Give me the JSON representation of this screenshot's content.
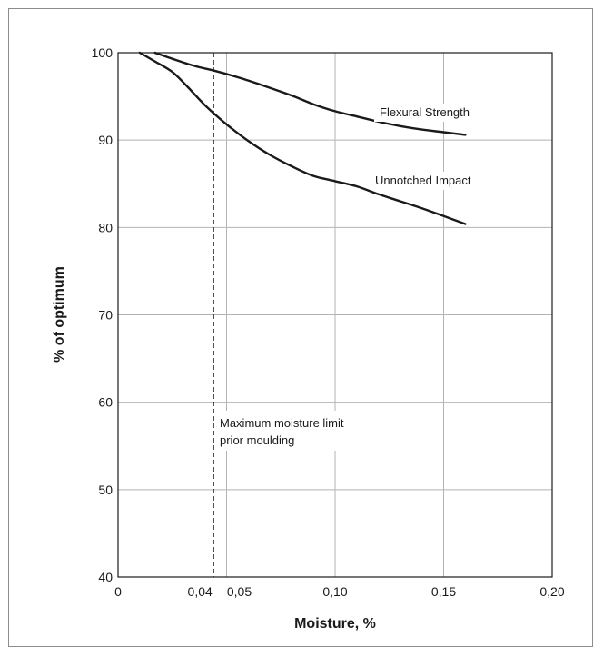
{
  "chart_data": {
    "type": "line",
    "title": "",
    "xlabel": "Moisture, %",
    "ylabel": "% of optimum",
    "xlim": [
      0,
      0.2
    ],
    "ylim": [
      40,
      100
    ],
    "grid": true,
    "x_ticks": [
      {
        "value": 0,
        "label": "0"
      },
      {
        "value": 0.044,
        "label": "0,04"
      },
      {
        "value": 0.05,
        "label": "0,05"
      },
      {
        "value": 0.1,
        "label": "0,10"
      },
      {
        "value": 0.15,
        "label": "0,15"
      },
      {
        "value": 0.2,
        "label": "0,20"
      }
    ],
    "y_ticks": [
      {
        "value": 40,
        "label": "40"
      },
      {
        "value": 50,
        "label": "50"
      },
      {
        "value": 60,
        "label": "60"
      },
      {
        "value": 70,
        "label": "70"
      },
      {
        "value": 80,
        "label": "80"
      },
      {
        "value": 90,
        "label": "90"
      },
      {
        "value": 100,
        "label": "100"
      }
    ],
    "series": [
      {
        "name": "Flexural Strength",
        "color": "#1a1a1a",
        "x": [
          0.017,
          0.025,
          0.035,
          0.045,
          0.055,
          0.065,
          0.08,
          0.09,
          0.1,
          0.11,
          0.12,
          0.13,
          0.14,
          0.15,
          0.16
        ],
        "y": [
          100,
          99.3,
          98.5,
          97.9,
          97.2,
          96.4,
          95.1,
          94.1,
          93.3,
          92.7,
          92.1,
          91.6,
          91.2,
          90.9,
          90.6
        ]
      },
      {
        "name": "Unnotched Impact",
        "color": "#1a1a1a",
        "x": [
          0.01,
          0.017,
          0.025,
          0.032,
          0.04,
          0.05,
          0.06,
          0.07,
          0.08,
          0.09,
          0.1,
          0.11,
          0.12,
          0.13,
          0.14,
          0.15,
          0.16
        ],
        "y": [
          100,
          99,
          97.8,
          96.1,
          94,
          91.8,
          89.9,
          88.3,
          87.0,
          85.9,
          85.3,
          84.7,
          83.8,
          83.0,
          82.2,
          81.3,
          80.4
        ]
      }
    ],
    "annotations": [
      {
        "text": "Maximum moisture limit",
        "line": 1
      },
      {
        "text": "prior moulding",
        "line": 2
      }
    ],
    "reference_line": {
      "x": 0.044,
      "style": "dashed",
      "label": "Maximum moisture limit prior moulding"
    },
    "series_labels": [
      "Flexural Strength",
      "Unnotched Impact"
    ]
  }
}
